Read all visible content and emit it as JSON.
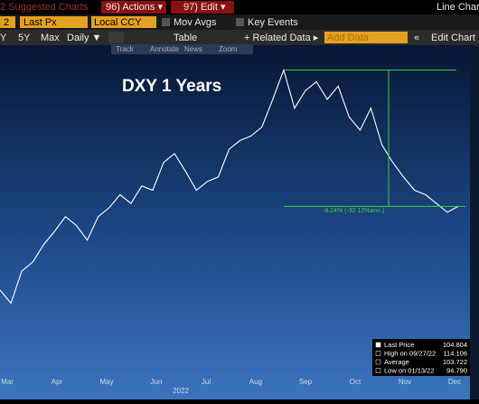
{
  "toolbar": {
    "suggested": "2 Suggested Charts",
    "actions": "96) Actions ▾",
    "edit": "97) Edit ▾",
    "chart_kind": "Line Chart",
    "field": "2",
    "price": "Last Px",
    "currency": "Local CCY",
    "mov_avgs": "Mov Avgs",
    "key_events": "Key Events",
    "periods": [
      "Y",
      "5Y",
      "Max"
    ],
    "frequency": "Daily ▼",
    "table": "Table",
    "related": "+ Related Data ▸",
    "add_data": "Add Data",
    "nav": "«",
    "edit_chart": "Edit Chart",
    "tools": [
      "Track",
      "Annotate",
      "News",
      "Zoom"
    ]
  },
  "chart_data": {
    "type": "line",
    "title": "DXY 1 Years",
    "annotation": "-8.24% (-32.12%ann.)",
    "x_labels": [
      "Mar",
      "Apr",
      "May",
      "Jun",
      "Jul",
      "Aug",
      "Sep",
      "Oct",
      "Nov",
      "Dec"
    ],
    "x_year": "2022",
    "series": [
      {
        "name": "DXY",
        "color": "#ffffff",
        "values": [
          99.1,
          98.2,
          100.4,
          101.0,
          102.2,
          103.1,
          104.1,
          103.5,
          102.5,
          104.1,
          104.7,
          105.6,
          105.0,
          106.2,
          105.9,
          107.8,
          108.4,
          107.2,
          105.9,
          106.5,
          106.8,
          108.7,
          109.3,
          109.6,
          110.2,
          112.1,
          114.1,
          111.5,
          112.7,
          113.3,
          112.1,
          113.0,
          110.9,
          110.0,
          111.5,
          109.0,
          107.8,
          106.8,
          105.9,
          105.6,
          105.0,
          104.4,
          104.8
        ]
      }
    ],
    "ylim": [
      93.3,
      116.1
    ],
    "legend": [
      {
        "label": "Last Price",
        "value": "104.804"
      },
      {
        "label": "High on 09/27/22",
        "value": "114.106"
      },
      {
        "label": "Average",
        "value": "103.722"
      },
      {
        "label": "Low on 01/13/22",
        "value": "94.790"
      }
    ]
  }
}
